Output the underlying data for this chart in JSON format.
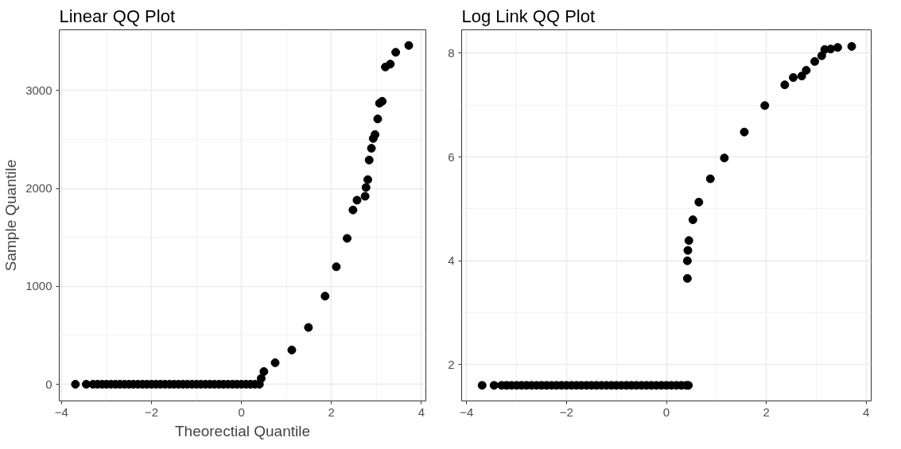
{
  "chart_data": [
    {
      "type": "scatter",
      "title": "Linear QQ Plot",
      "xlabel": "Theorectial Quantile",
      "ylabel": "Sample Quantile",
      "marker": "circle",
      "grid": true,
      "xlim": [
        -4.05,
        4.1
      ],
      "ylim": [
        -170,
        3620
      ],
      "xticks": [
        -4,
        -2,
        0,
        2,
        4
      ],
      "yticks": [
        0,
        1000,
        2000,
        3000
      ],
      "series": [
        {
          "color": "#000000",
          "x": [
            -3.69,
            -3.45,
            -3.3,
            -3.2,
            -3.1,
            -3.0,
            -2.9,
            -2.8,
            -2.7,
            -2.6,
            -2.5,
            -2.4,
            -2.3,
            -2.2,
            -2.1,
            -2.0,
            -1.9,
            -1.8,
            -1.7,
            -1.6,
            -1.5,
            -1.4,
            -1.3,
            -1.2,
            -1.1,
            -1.0,
            -0.9,
            -0.8,
            -0.7,
            -0.6,
            -0.5,
            -0.4,
            -0.3,
            -0.2,
            -0.1,
            0.0,
            0.1,
            0.2,
            0.3,
            0.4,
            0.44,
            0.5,
            0.75,
            1.12,
            1.49,
            1.86,
            2.11,
            2.35,
            2.48,
            2.57,
            2.75,
            2.77,
            2.81,
            2.84,
            2.89,
            2.93,
            2.97,
            3.03,
            3.07,
            3.13,
            3.2,
            3.31,
            3.43,
            3.72
          ],
          "values": [
            0,
            0,
            0,
            0,
            0,
            0,
            0,
            0,
            0,
            0,
            0,
            0,
            0,
            0,
            0,
            0,
            0,
            0,
            0,
            0,
            0,
            0,
            0,
            0,
            0,
            0,
            0,
            0,
            0,
            0,
            0,
            0,
            0,
            0,
            0,
            0,
            0,
            0,
            0,
            0,
            60,
            130,
            220,
            350,
            580,
            900,
            1200,
            1490,
            1780,
            1880,
            1920,
            2010,
            2090,
            2290,
            2410,
            2510,
            2550,
            2710,
            2870,
            2890,
            3240,
            3270,
            3390,
            3460
          ]
        }
      ]
    },
    {
      "type": "scatter",
      "title": "Log Link QQ Plot",
      "marker": "circle",
      "grid": true,
      "xlim": [
        -4.1,
        4.1
      ],
      "ylim": [
        1.3,
        8.45
      ],
      "xticks": [
        -4,
        -2,
        0,
        2,
        4
      ],
      "yticks": [
        2,
        4,
        6,
        8
      ],
      "series": [
        {
          "color": "#000000",
          "x": [
            -3.69,
            -3.45,
            -3.3,
            -3.2,
            -3.1,
            -3.0,
            -2.9,
            -2.8,
            -2.7,
            -2.6,
            -2.5,
            -2.4,
            -2.3,
            -2.2,
            -2.1,
            -2.0,
            -1.9,
            -1.8,
            -1.7,
            -1.6,
            -1.5,
            -1.4,
            -1.3,
            -1.2,
            -1.1,
            -1.0,
            -0.9,
            -0.8,
            -0.7,
            -0.6,
            -0.5,
            -0.4,
            -0.3,
            -0.2,
            -0.1,
            0.0,
            0.1,
            0.2,
            0.3,
            0.4,
            0.44,
            0.42,
            0.42,
            0.43,
            0.45,
            0.53,
            0.65,
            0.88,
            1.16,
            1.56,
            1.97,
            2.37,
            2.54,
            2.71,
            2.8,
            2.97,
            3.11,
            3.17,
            3.29,
            3.43,
            3.71
          ],
          "values": [
            1.6,
            1.6,
            1.6,
            1.6,
            1.6,
            1.6,
            1.6,
            1.6,
            1.6,
            1.6,
            1.6,
            1.6,
            1.6,
            1.6,
            1.6,
            1.6,
            1.6,
            1.6,
            1.6,
            1.6,
            1.6,
            1.6,
            1.6,
            1.6,
            1.6,
            1.6,
            1.6,
            1.6,
            1.6,
            1.6,
            1.6,
            1.6,
            1.6,
            1.6,
            1.6,
            1.6,
            1.6,
            1.6,
            1.6,
            1.6,
            1.6,
            3.66,
            4.0,
            4.2,
            4.39,
            4.79,
            5.13,
            5.58,
            5.98,
            6.48,
            6.99,
            7.39,
            7.53,
            7.56,
            7.67,
            7.84,
            7.95,
            8.07,
            8.08,
            8.11,
            8.13
          ]
        }
      ]
    }
  ]
}
